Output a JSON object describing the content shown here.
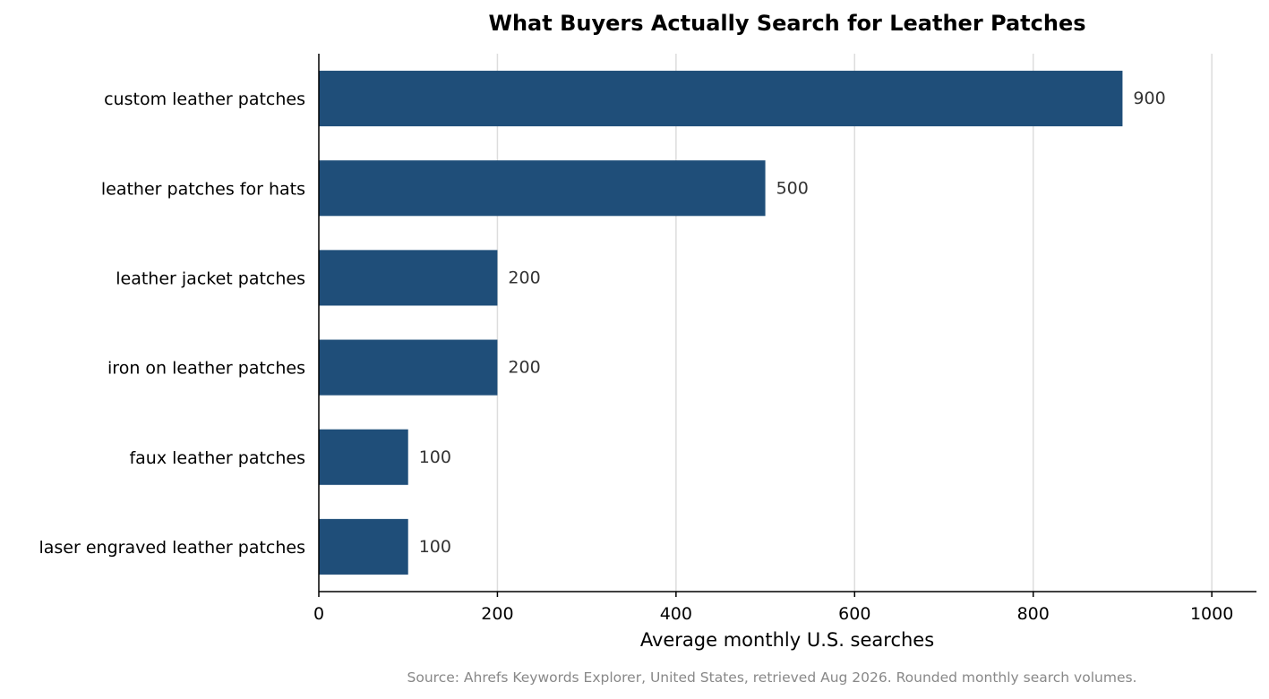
{
  "chart_data": {
    "type": "bar",
    "orientation": "horizontal",
    "title": "What Buyers Actually Search for Leather Patches",
    "xlabel": "Average monthly U.S. searches",
    "ylabel": "",
    "categories": [
      "custom leather patches",
      "leather patches for hats",
      "leather jacket patches",
      "iron on leather patches",
      "faux leather patches",
      "laser engraved leather patches"
    ],
    "values": [
      900,
      500,
      200,
      200,
      100,
      100
    ],
    "data_labels": [
      "900",
      "500",
      "200",
      "200",
      "100",
      "100"
    ],
    "xlim": [
      0,
      1050
    ],
    "xticks": [
      0,
      200,
      400,
      600,
      800,
      1000
    ],
    "xtick_labels": [
      "0",
      "200",
      "400",
      "600",
      "800",
      "1000"
    ],
    "grid": "vertical",
    "legend": "none",
    "source_note": "Source: Ahrefs Keywords Explorer, United States, retrieved Aug 2026. Rounded monthly search volumes.",
    "colors": {
      "bar": "#1f4e79",
      "grid": "#dddddd",
      "axis": "#000000",
      "value_label": "#333333",
      "source_note": "#888888"
    }
  }
}
